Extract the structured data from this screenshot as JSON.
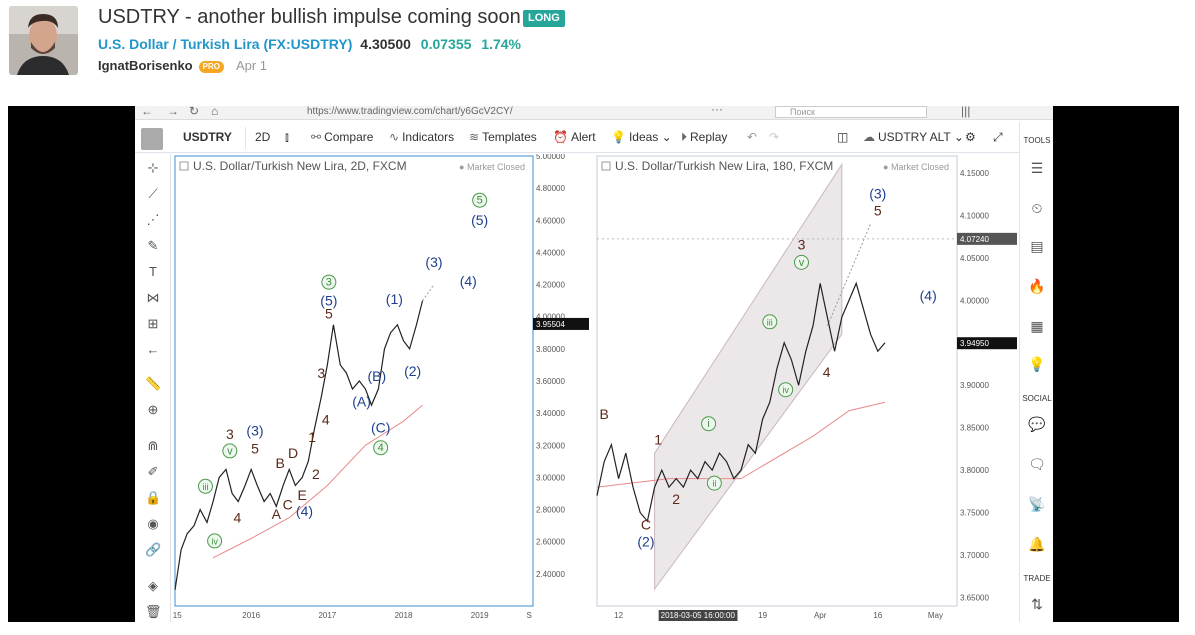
{
  "idea": {
    "title": "USDTRY - another bullish impulse coming soon",
    "badge": "LONG",
    "symbol_name": "U.S. Dollar / Turkish Lira",
    "symbol_ticker": "FX:USDTRY",
    "price": "4.30500",
    "change": "0.07355",
    "change_pct": "1.74%",
    "author": "IgnatBorisenko",
    "author_badge": "PRO",
    "date": "Apr 1"
  },
  "browser": {
    "url": "https://www.tradingview.com/chart/y6GcV2CY/",
    "search_placeholder": "Поиск"
  },
  "toolbar": {
    "symbol": "USDTRY",
    "interval": "2D",
    "compare": "Compare",
    "indicators": "Indicators",
    "templates": "Templates",
    "alert": "Alert",
    "ideas": "Ideas",
    "replay": "Replay",
    "layout": "USDTRY ALT"
  },
  "right_tools": {
    "tools_label": "TOOLS",
    "social_label": "SOCIAL",
    "trade_label": "TRADE"
  },
  "chart_data": [
    {
      "type": "line",
      "title": "U.S. Dollar/Turkish New Lira, 2D, FXCM",
      "status": "Market Closed",
      "x_ticks": [
        "015",
        "2016",
        "2017",
        "2018",
        "2019",
        "S"
      ],
      "y_ticks": [
        "5.00000",
        "4.80000",
        "4.60000",
        "4.40000",
        "4.20000",
        "4.00000",
        "3.80000",
        "3.60000",
        "3.40000",
        "3.20000",
        "3.00000",
        "2.80000",
        "2.60000",
        "2.40000"
      ],
      "ylim": [
        2.2,
        5.0
      ],
      "last_price": "3.95504",
      "series": [
        {
          "x": [
            2015.0,
            2015.08,
            2015.16,
            2015.25,
            2015.33,
            2015.42,
            2015.5,
            2015.58,
            2015.67,
            2015.75,
            2015.83,
            2015.92,
            2016.0,
            2016.08,
            2016.17,
            2016.25,
            2016.33,
            2016.42,
            2016.5,
            2016.58,
            2016.67,
            2016.75,
            2016.83,
            2016.92,
            2017.0,
            2017.08,
            2017.17,
            2017.25,
            2017.33,
            2017.42,
            2017.5,
            2017.58,
            2017.67,
            2017.75,
            2017.83,
            2017.92,
            2018.0,
            2018.08,
            2018.17,
            2018.25
          ],
          "values": [
            2.3,
            2.55,
            2.65,
            2.7,
            2.8,
            2.72,
            2.85,
            3.0,
            3.05,
            2.9,
            2.85,
            2.95,
            3.05,
            2.95,
            2.85,
            2.9,
            2.82,
            2.95,
            3.05,
            2.95,
            3.0,
            3.1,
            3.3,
            3.5,
            3.7,
            3.95,
            3.7,
            3.65,
            3.55,
            3.6,
            3.55,
            3.45,
            3.55,
            3.8,
            3.9,
            3.95,
            3.85,
            3.8,
            3.95,
            4.1
          ]
        },
        {
          "name": "",
          "x": [
            2015.5,
            2016.0,
            2016.5,
            2017.0,
            2017.5,
            2018.0,
            2018.25
          ],
          "values": [
            2.5,
            2.62,
            2.75,
            2.95,
            3.2,
            3.35,
            3.45
          ]
        }
      ],
      "annotations": [
        {
          "text": "iii",
          "x": 2015.4,
          "y": 2.92,
          "style": "green-circle"
        },
        {
          "text": "iv",
          "x": 2015.52,
          "y": 2.58,
          "style": "green-circle"
        },
        {
          "text": "4",
          "x": 2015.82,
          "y": 2.72,
          "style": "brown"
        },
        {
          "text": "3",
          "x": 2015.72,
          "y": 3.24,
          "style": "brown"
        },
        {
          "text": "v",
          "x": 2015.72,
          "y": 3.14,
          "style": "green-circle"
        },
        {
          "text": "(3)",
          "x": 2016.05,
          "y": 3.26,
          "style": "blue"
        },
        {
          "text": "5",
          "x": 2016.05,
          "y": 3.15,
          "style": "brown"
        },
        {
          "text": "B",
          "x": 2016.38,
          "y": 3.06,
          "style": "brown"
        },
        {
          "text": "D",
          "x": 2016.55,
          "y": 3.12,
          "style": "brown"
        },
        {
          "text": "A",
          "x": 2016.33,
          "y": 2.74,
          "style": "brown"
        },
        {
          "text": "C",
          "x": 2016.48,
          "y": 2.8,
          "style": "brown"
        },
        {
          "text": "E",
          "x": 2016.67,
          "y": 2.86,
          "style": "brown"
        },
        {
          "text": "(4)",
          "x": 2016.7,
          "y": 2.76,
          "style": "blue"
        },
        {
          "text": "2",
          "x": 2016.85,
          "y": 2.99,
          "style": "brown"
        },
        {
          "text": "1",
          "x": 2016.8,
          "y": 3.22,
          "style": "brown"
        },
        {
          "text": "4",
          "x": 2016.98,
          "y": 3.33,
          "style": "brown"
        },
        {
          "text": "3",
          "x": 2016.92,
          "y": 3.62,
          "style": "brown"
        },
        {
          "text": "5",
          "x": 2017.02,
          "y": 3.99,
          "style": "brown"
        },
        {
          "text": "(5)",
          "x": 2017.02,
          "y": 4.07,
          "style": "blue"
        },
        {
          "text": "3",
          "x": 2017.02,
          "y": 4.19,
          "style": "green-circle"
        },
        {
          "text": "(A)",
          "x": 2017.45,
          "y": 3.44,
          "style": "blue"
        },
        {
          "text": "(B)",
          "x": 2017.65,
          "y": 3.6,
          "style": "blue"
        },
        {
          "text": "(C)",
          "x": 2017.7,
          "y": 3.28,
          "style": "blue"
        },
        {
          "text": "4",
          "x": 2017.7,
          "y": 3.16,
          "style": "green-circle"
        },
        {
          "text": "(1)",
          "x": 2017.88,
          "y": 4.08,
          "style": "blue"
        },
        {
          "text": "(2)",
          "x": 2018.12,
          "y": 3.63,
          "style": "blue"
        },
        {
          "text": "(3)",
          "x": 2018.4,
          "y": 4.31,
          "style": "blue"
        },
        {
          "text": "(4)",
          "x": 2018.85,
          "y": 4.19,
          "style": "blue"
        },
        {
          "text": "5",
          "x": 2019.0,
          "y": 4.7,
          "style": "green-circle"
        },
        {
          "text": "(5)",
          "x": 2019.0,
          "y": 4.57,
          "style": "blue"
        }
      ]
    },
    {
      "type": "line",
      "title": "U.S. Dollar/Turkish New Lira, 180, FXCM",
      "status": "Market Closed",
      "x_ticks": [
        "12",
        "2018-03-05 16:00:00",
        "19",
        "Apr",
        "16",
        "May"
      ],
      "y_ticks": [
        "4.15000",
        "4.10000",
        "4.05000",
        "4.00000",
        "3.95000",
        "3.90000",
        "3.85000",
        "3.80000",
        "3.75000",
        "3.70000",
        "3.65000"
      ],
      "ylim": [
        3.64,
        4.17
      ],
      "last_price": "3.94950",
      "crosshair_price": "4.07240",
      "series": [
        {
          "x": [
            0,
            1,
            2,
            3,
            4,
            5,
            6,
            7,
            8,
            9,
            10,
            11,
            12,
            13,
            14,
            15,
            16,
            17,
            18,
            19,
            20,
            21,
            22,
            23,
            24,
            25,
            26,
            27,
            28,
            29,
            30,
            31,
            32,
            33,
            34,
            35,
            36,
            37,
            38,
            39,
            40
          ],
          "values": [
            3.77,
            3.81,
            3.83,
            3.79,
            3.82,
            3.78,
            3.75,
            3.74,
            3.78,
            3.8,
            3.78,
            3.79,
            3.78,
            3.8,
            3.79,
            3.81,
            3.8,
            3.82,
            3.81,
            3.79,
            3.8,
            3.83,
            3.82,
            3.86,
            3.88,
            3.92,
            3.95,
            3.93,
            3.9,
            3.94,
            3.97,
            4.02,
            3.98,
            3.94,
            3.98,
            4.0,
            4.02,
            3.99,
            3.96,
            3.94,
            3.95
          ]
        },
        {
          "name": "",
          "x": [
            0,
            10,
            20,
            30,
            35,
            40
          ],
          "values": [
            3.78,
            3.79,
            3.79,
            3.84,
            3.87,
            3.88
          ]
        }
      ],
      "annotations": [
        {
          "text": "B",
          "x": 1,
          "y": 3.86,
          "style": "brown"
        },
        {
          "text": "C",
          "x": 6.8,
          "y": 3.73,
          "style": "brown"
        },
        {
          "text": "(2)",
          "x": 6.8,
          "y": 3.71,
          "style": "blue"
        },
        {
          "text": "1",
          "x": 8.5,
          "y": 3.83,
          "style": "brown"
        },
        {
          "text": "2",
          "x": 11,
          "y": 3.76,
          "style": "brown"
        },
        {
          "text": "i",
          "x": 15.5,
          "y": 3.85,
          "style": "green-circle"
        },
        {
          "text": "ii",
          "x": 16.3,
          "y": 3.78,
          "style": "green-circle"
        },
        {
          "text": "iii",
          "x": 24,
          "y": 3.97,
          "style": "green-circle"
        },
        {
          "text": "iv",
          "x": 26.2,
          "y": 3.89,
          "style": "green-circle"
        },
        {
          "text": "v",
          "x": 28.4,
          "y": 4.04,
          "style": "green-circle"
        },
        {
          "text": "3",
          "x": 28.4,
          "y": 4.06,
          "style": "brown"
        },
        {
          "text": "4",
          "x": 31.9,
          "y": 3.91,
          "style": "brown"
        },
        {
          "text": "(3)",
          "x": 39,
          "y": 4.12,
          "style": "blue"
        },
        {
          "text": "5",
          "x": 39,
          "y": 4.1,
          "style": "brown"
        },
        {
          "text": "(4)",
          "x": 46,
          "y": 4.0,
          "style": "blue"
        }
      ]
    }
  ]
}
